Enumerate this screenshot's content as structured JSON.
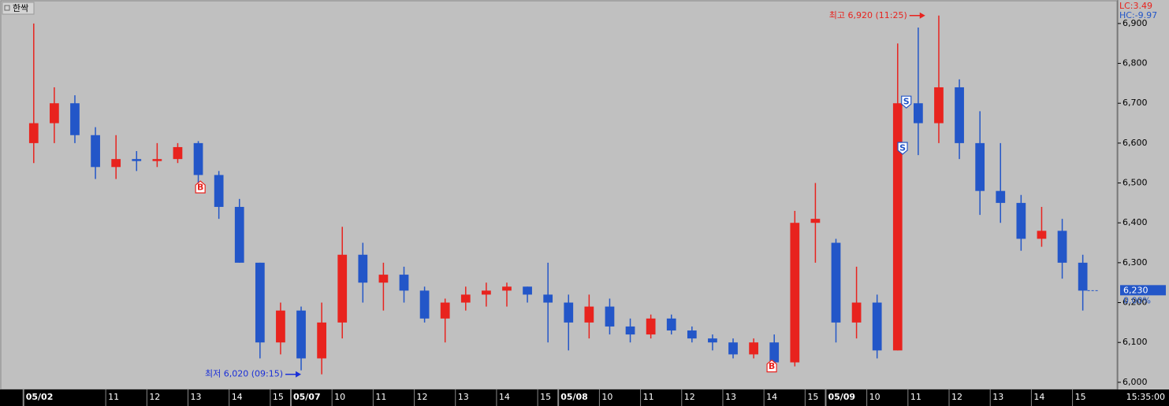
{
  "chart_data": {
    "type": "candlestick",
    "title": "한싹",
    "lc_label": "LC:3.49",
    "hc_label": "HC:-9.97",
    "up_color": "#e8231e",
    "down_color": "#2356c8",
    "x": [
      0.25,
      0.75,
      1.25,
      1.75,
      2.25,
      2.75,
      3.25,
      3.75,
      4.25,
      4.75,
      5.25,
      5.75,
      6.25,
      6.75,
      7.25,
      7.75,
      8.25,
      8.75,
      9.25,
      9.75,
      10.25,
      10.75,
      11.25,
      11.75,
      12.25,
      12.75,
      13.25,
      13.75,
      14.25,
      14.75,
      15.25,
      15.75,
      16.25,
      16.75,
      17.25,
      17.75,
      18.25,
      18.75,
      19.25,
      19.75,
      20.25,
      20.75,
      21.25,
      21.75,
      22.25,
      22.75,
      23.25,
      23.75,
      24.25,
      24.75,
      25.25,
      25.75
    ],
    "open": [
      6600,
      6650,
      6700,
      6620,
      6540,
      6560,
      6555,
      6560,
      6600,
      6520,
      6440,
      6300,
      6100,
      6180,
      6060,
      6150,
      6320,
      6250,
      6270,
      6230,
      6160,
      6200,
      6220,
      6230,
      6240,
      6220,
      6200,
      6150,
      6190,
      6140,
      6120,
      6160,
      6130,
      6110,
      6100,
      6070,
      6100,
      6050,
      6400,
      6350,
      6150,
      6200,
      6080,
      6700,
      6650,
      6740,
      6600,
      6480,
      6450,
      6360,
      6380,
      6300
    ],
    "high": [
      6900,
      6740,
      6720,
      6640,
      6620,
      6580,
      6600,
      6600,
      6605,
      6530,
      6460,
      6300,
      6200,
      6190,
      6200,
      6390,
      6350,
      6300,
      6290,
      6240,
      6210,
      6240,
      6250,
      6250,
      6240,
      6300,
      6220,
      6220,
      6210,
      6160,
      6170,
      6170,
      6140,
      6120,
      6110,
      6110,
      6120,
      6430,
      6500,
      6360,
      6290,
      6220,
      6850,
      6890,
      6920,
      6760,
      6680,
      6600,
      6470,
      6440,
      6410,
      6320
    ],
    "low": [
      6550,
      6600,
      6600,
      6510,
      6510,
      6530,
      6540,
      6550,
      6500,
      6410,
      6300,
      6060,
      6070,
      6030,
      6020,
      6110,
      6200,
      6180,
      6200,
      6150,
      6100,
      6180,
      6190,
      6190,
      6200,
      6100,
      6080,
      6110,
      6120,
      6100,
      6110,
      6120,
      6100,
      6080,
      6060,
      6060,
      6030,
      6040,
      6300,
      6100,
      6110,
      6060,
      6080,
      6570,
      6600,
      6560,
      6420,
      6400,
      6330,
      6340,
      6260,
      6180
    ],
    "close": [
      6650,
      6700,
      6620,
      6540,
      6560,
      6555,
      6560,
      6590,
      6520,
      6440,
      6300,
      6100,
      6180,
      6060,
      6150,
      6320,
      6250,
      6270,
      6230,
      6160,
      6200,
      6220,
      6230,
      6240,
      6220,
      6200,
      6150,
      6190,
      6140,
      6120,
      6160,
      6130,
      6110,
      6100,
      6070,
      6100,
      6050,
      6400,
      6410,
      6150,
      6200,
      6080,
      6700,
      6650,
      6740,
      6600,
      6480,
      6450,
      6360,
      6380,
      6300,
      6230
    ],
    "xlim": [
      -0.57,
      26.6
    ],
    "ylim": [
      5982,
      6959
    ],
    "yticks": [
      {
        "value": 6000,
        "label": "6,000"
      },
      {
        "value": 6100,
        "label": "6,100"
      },
      {
        "value": 6200,
        "label": "6,200"
      },
      {
        "value": 6300,
        "label": "6,300"
      },
      {
        "value": 6400,
        "label": "6,400"
      },
      {
        "value": 6500,
        "label": "6,500"
      },
      {
        "value": 6600,
        "label": "6,600"
      },
      {
        "value": 6700,
        "label": "6,700"
      },
      {
        "value": 6800,
        "label": "6,800"
      },
      {
        "value": 6900,
        "label": "6,900"
      }
    ],
    "xticks": [
      {
        "value": 0,
        "label": "05/02"
      },
      {
        "value": 2,
        "label": "11"
      },
      {
        "value": 3,
        "label": "12"
      },
      {
        "value": 4,
        "label": "13"
      },
      {
        "value": 5,
        "label": "14"
      },
      {
        "value": 6,
        "label": "15"
      },
      {
        "value": 6.5,
        "label": "05/07"
      },
      {
        "value": 7.5,
        "label": "10"
      },
      {
        "value": 8.5,
        "label": "11"
      },
      {
        "value": 9.5,
        "label": "12"
      },
      {
        "value": 10.5,
        "label": "13"
      },
      {
        "value": 11.5,
        "label": "14"
      },
      {
        "value": 12.5,
        "label": "15"
      },
      {
        "value": 13,
        "label": "05/08"
      },
      {
        "value": 14,
        "label": "10"
      },
      {
        "value": 15,
        "label": "11"
      },
      {
        "value": 16,
        "label": "12"
      },
      {
        "value": 17,
        "label": "13"
      },
      {
        "value": 18,
        "label": "14"
      },
      {
        "value": 19,
        "label": "15"
      },
      {
        "value": 19.5,
        "label": "05/09"
      },
      {
        "value": 20.5,
        "label": "10"
      },
      {
        "value": 21.5,
        "label": "11"
      },
      {
        "value": 22.5,
        "label": "12"
      },
      {
        "value": 23.5,
        "label": "13"
      },
      {
        "value": 24.5,
        "label": "14"
      },
      {
        "value": 25.5,
        "label": "15"
      }
    ],
    "time_label": "15:35:00",
    "last_price": {
      "value": 6230,
      "label": "6,230"
    },
    "change_label": "0.00%",
    "annotations": [
      {
        "text": "최고 6,920 (11:25)",
        "x": 21.92,
        "y": 6920,
        "color": "#e8231e"
      },
      {
        "text": "최저 6,020 (09:15)",
        "x": 6.75,
        "y": 6020,
        "color": "#1a2fd8"
      }
    ],
    "signals": [
      {
        "label": "B",
        "x": 4.3,
        "y": 6489,
        "color": "#e8231e"
      },
      {
        "label": "B",
        "x": 18.19,
        "y": 6040,
        "color": "#e8231e"
      },
      {
        "label": "S",
        "x": 21.46,
        "y": 6704,
        "color": "#2356c8"
      },
      {
        "label": "S",
        "x": 21.37,
        "y": 6588,
        "color": "#2356c8"
      }
    ]
  }
}
